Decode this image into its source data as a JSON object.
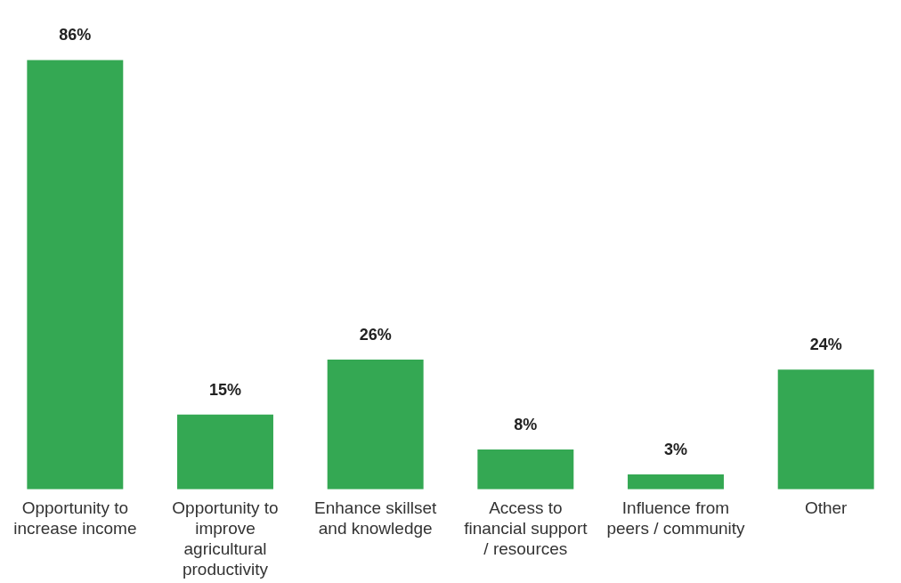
{
  "chart_data": {
    "type": "bar",
    "categories": [
      "Opportunity to increase income",
      "Opportunity to improve agricultural productivity",
      "Enhance skillset and knowledge",
      "Access to financial support / resources",
      "Influence from peers / community",
      "Other"
    ],
    "values": [
      86,
      15,
      26,
      8,
      3,
      24
    ],
    "color": "#34a853",
    "value_labels": [
      "86%",
      "15%",
      "26%",
      "8%",
      "3%",
      "24%"
    ],
    "tick_labels": "x",
    "grid": false,
    "legend": false
  }
}
